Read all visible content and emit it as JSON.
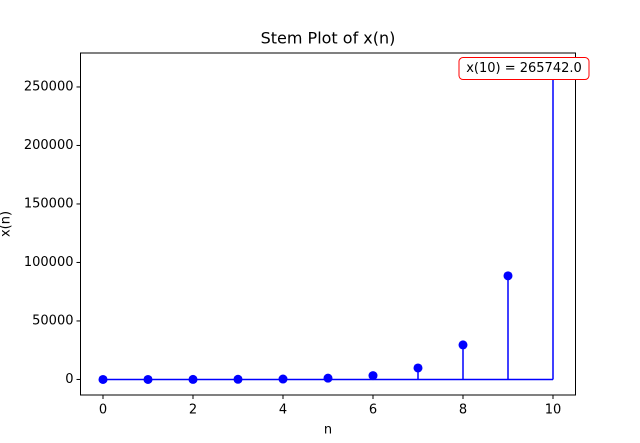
{
  "chart_data": {
    "type": "stem",
    "title": "Stem Plot of x(n)",
    "xlabel": "n",
    "ylabel": "x(n)",
    "x": [
      0,
      1,
      2,
      3,
      4,
      5,
      6,
      7,
      8,
      9,
      10
    ],
    "values": [
      5,
      14,
      41,
      122,
      365,
      1094,
      3281,
      9842,
      29525,
      88581,
      265742
    ],
    "color": "#0000ff",
    "xlim": [
      -0.5,
      10.5
    ],
    "xticks": [
      0,
      2,
      4,
      6,
      8,
      10
    ],
    "ylim": [
      -13287.1,
      279029.1
    ],
    "yticks": [
      0,
      50000,
      100000,
      150000,
      200000,
      250000
    ],
    "annotation": "x(10) = 265742.0",
    "annotation_color": "#ff0000"
  }
}
